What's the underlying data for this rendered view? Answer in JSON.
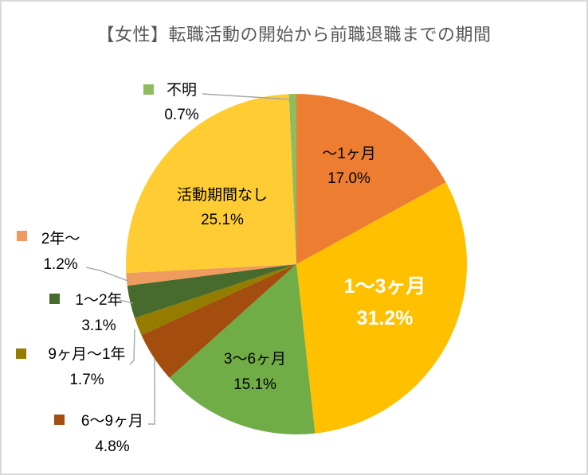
{
  "title": "【女性】転職活動の開始から前職退職までの期間",
  "colors": {
    "title_text": "#595959",
    "leader_line": "#A6A6A6",
    "inside_label_big_text": "#FFFFFF",
    "inside_label_text": "#000000",
    "border": "#D9D9D9"
  },
  "chart_data": {
    "type": "pie",
    "title": "【女性】転職活動の開始から前職退職までの期間",
    "unit": "%",
    "total": 99.9,
    "start_angle_deg": 0,
    "direction": "clockwise",
    "legend_position": "callout-labels",
    "segments": [
      {
        "id": "under-1-month",
        "label": "～1ヶ月",
        "value": 17.0,
        "pct_text": "17.0%",
        "color": "#ED7D31",
        "label_placement": "inside"
      },
      {
        "id": "1-3-months",
        "label": "1～3ヶ月",
        "value": 31.2,
        "pct_text": "31.2%",
        "color": "#FFC000",
        "label_placement": "inside-emphasized"
      },
      {
        "id": "3-6-months",
        "label": "3～6ヶ月",
        "value": 15.1,
        "pct_text": "15.1%",
        "color": "#70AD47",
        "label_placement": "inside"
      },
      {
        "id": "6-9-months",
        "label": "6～9ヶ月",
        "value": 4.8,
        "pct_text": "4.8%",
        "color": "#A34E0E",
        "label_placement": "outside-with-swatch"
      },
      {
        "id": "9-months-1-year",
        "label": "9ヶ月～1年",
        "value": 1.7,
        "pct_text": "1.7%",
        "color": "#937C00",
        "label_placement": "outside-with-swatch"
      },
      {
        "id": "1-2-years",
        "label": "1～2年",
        "value": 3.1,
        "pct_text": "3.1%",
        "color": "#476B2D",
        "label_placement": "outside-with-swatch"
      },
      {
        "id": "over-2-years",
        "label": "2年～",
        "value": 1.2,
        "pct_text": "1.2%",
        "color": "#EF9B5E",
        "label_placement": "outside-with-swatch"
      },
      {
        "id": "no-activity-period",
        "label": "活動期間なし",
        "value": 25.1,
        "pct_text": "25.1%",
        "color": "#FFCD33",
        "label_placement": "inside"
      },
      {
        "id": "unknown",
        "label": "不明",
        "value": 0.7,
        "pct_text": "0.7%",
        "color": "#8FBC5E",
        "label_placement": "outside-with-swatch"
      }
    ]
  }
}
